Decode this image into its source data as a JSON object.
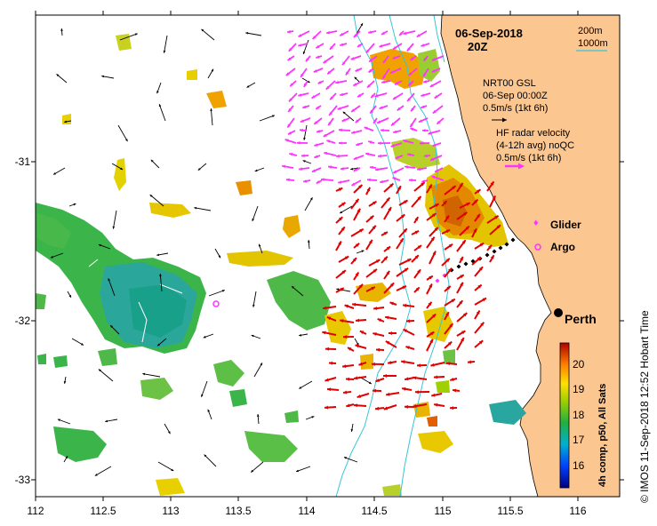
{
  "header": {
    "date": "06-Sep-2018",
    "time": "20Z"
  },
  "bathy_legend": {
    "line1": "200m",
    "line2": "1000m",
    "color": "#36c6d8"
  },
  "gsl_legend": {
    "line1": "NRT00 GSL",
    "line2": "06-Sep 00:00Z",
    "line3": "0.5m/s (1kt 6h)"
  },
  "hf_legend": {
    "line1": "HF radar velocity",
    "line2": "(4-12h avg) noQC",
    "line3": "0.5m/s (1kt 6h)",
    "arrow_color": "#ff33ff"
  },
  "platforms": {
    "glider_label": "Glider",
    "argo_label": "Argo",
    "color": "#ff33ff"
  },
  "place": {
    "name": "Perth"
  },
  "axes": {
    "x_ticks": [
      "112",
      "112.5",
      "113",
      "113.5",
      "114",
      "114.5",
      "115",
      "115.5",
      "116"
    ],
    "y_ticks": [
      "-31",
      "-32",
      "-33"
    ]
  },
  "colorbar": {
    "label": "4h comp, p50, All Sats",
    "ticks": [
      "20",
      "19",
      "18",
      "17",
      "16"
    ]
  },
  "credit": "© IMOS 11-Sep-2018 12:52 Hobart Time",
  "colors": {
    "land": "#fcc690",
    "red_arrow": "#e00000",
    "magenta_arrow": "#ff33ff",
    "bathy": "#36c6d8"
  }
}
